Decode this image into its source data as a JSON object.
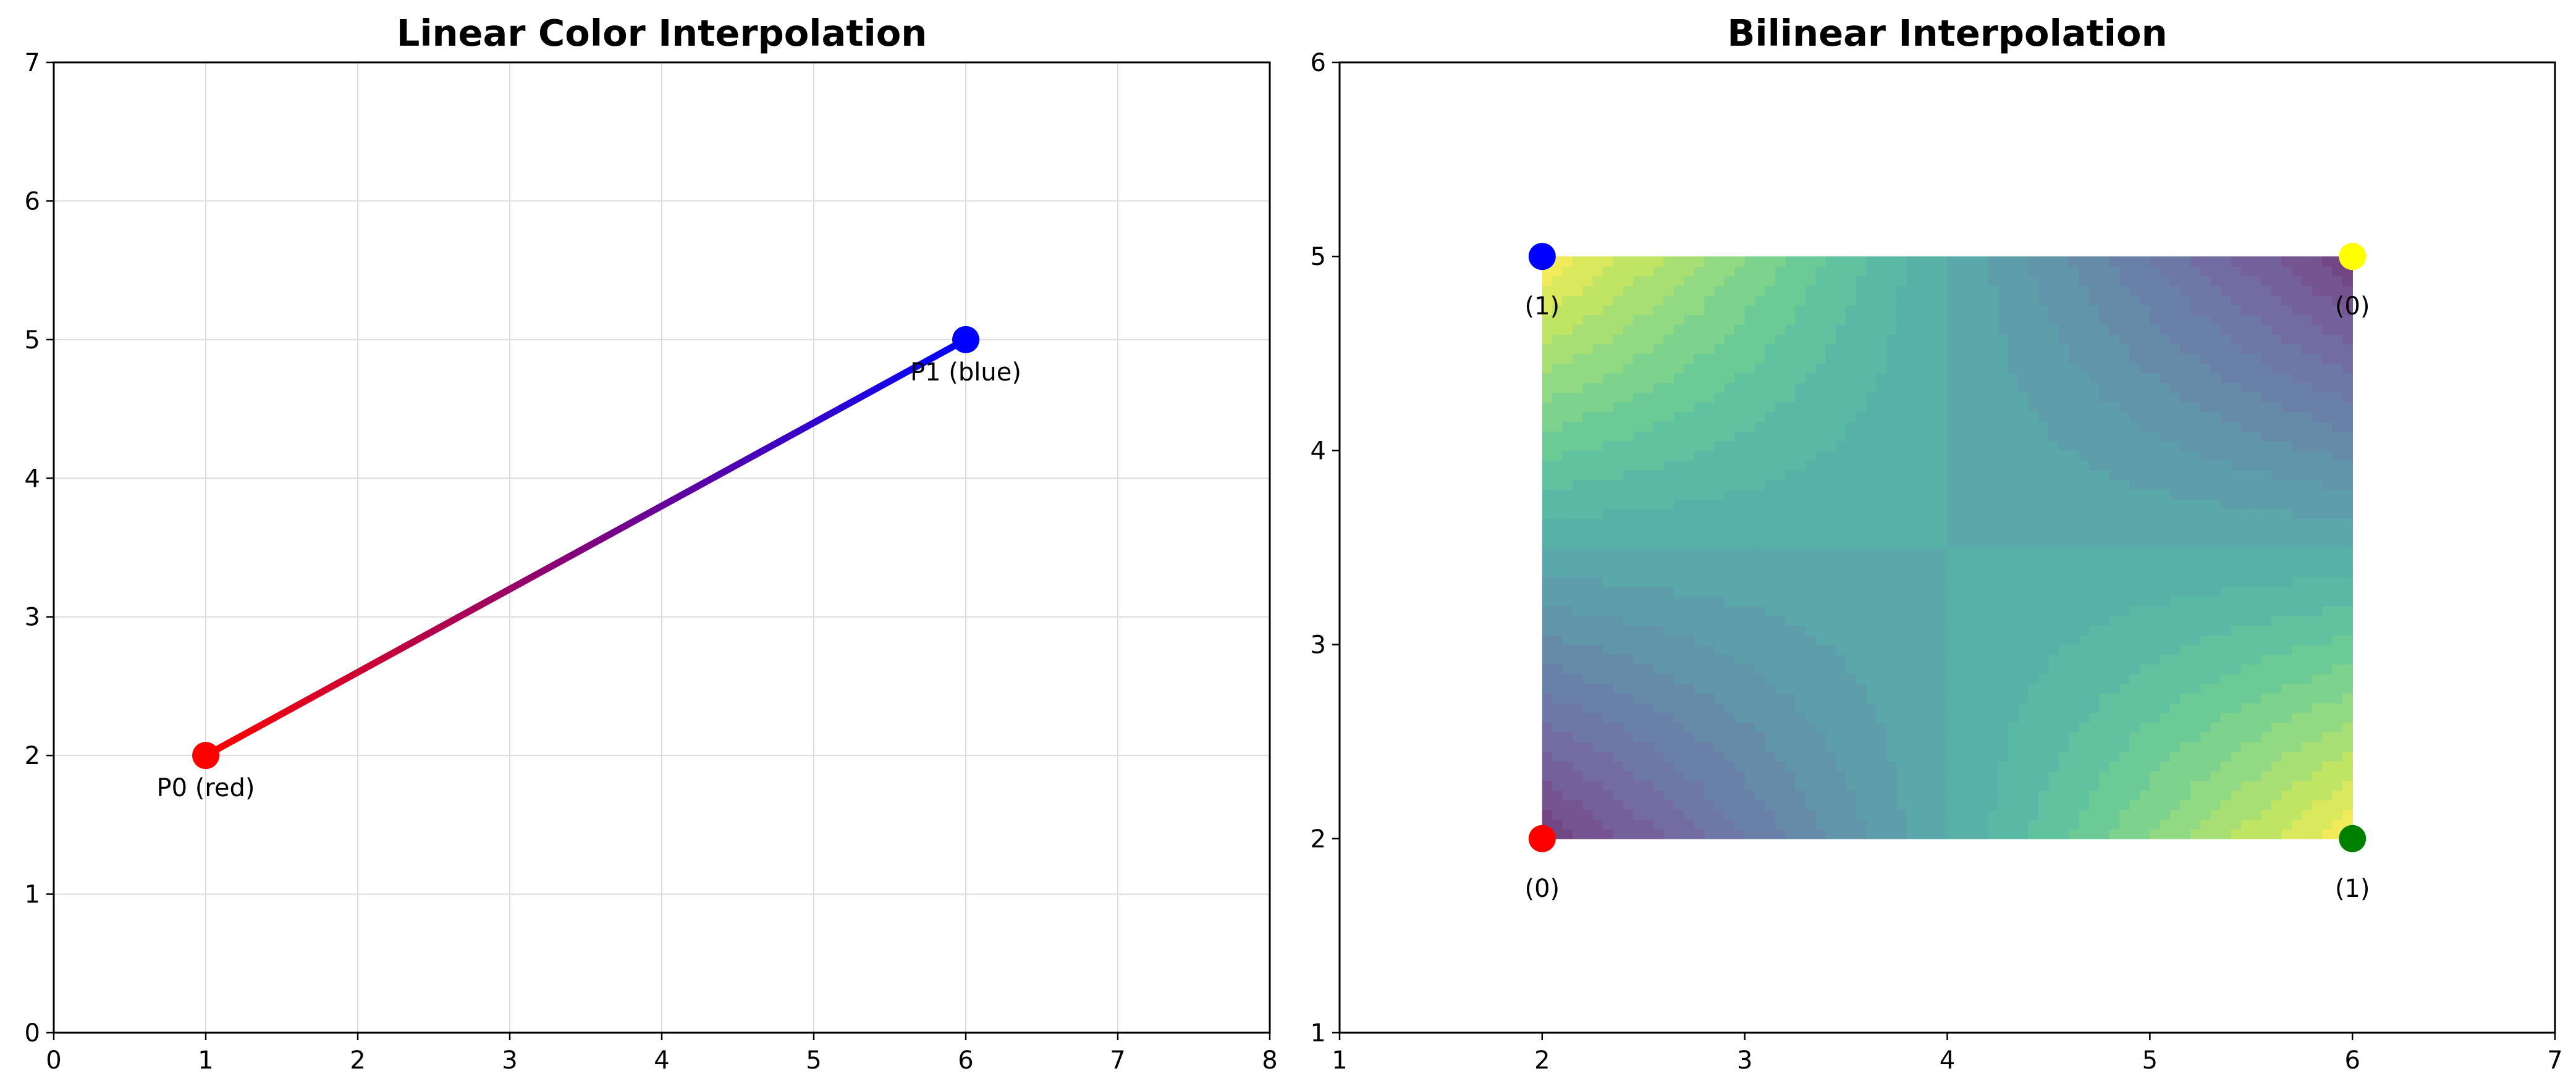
{
  "chart_data": [
    {
      "type": "line",
      "title": "Linear Color Interpolation",
      "xlabel": "",
      "ylabel": "",
      "xlim": [
        0,
        8
      ],
      "ylim": [
        0,
        7
      ],
      "xticks": [
        "0",
        "1",
        "2",
        "3",
        "4",
        "5",
        "6",
        "7",
        "8"
      ],
      "yticks": [
        "0",
        "1",
        "2",
        "3",
        "4",
        "5",
        "6",
        "7"
      ],
      "grid": true,
      "points": [
        {
          "label": "P0 (red)",
          "x": 1,
          "y": 2,
          "color": "#ff0000"
        },
        {
          "label": "P1 (blue)",
          "x": 6,
          "y": 5,
          "color": "#0000ff"
        }
      ],
      "segment_gradient": {
        "from": "#ff0000",
        "to": "#0000ff"
      }
    },
    {
      "type": "heatmap",
      "title": "Bilinear Interpolation",
      "xlabel": "",
      "ylabel": "",
      "xlim": [
        1,
        7
      ],
      "ylim": [
        1,
        6
      ],
      "xticks": [
        "1",
        "2",
        "3",
        "4",
        "5",
        "6",
        "7"
      ],
      "yticks": [
        "1",
        "2",
        "3",
        "4",
        "5",
        "6"
      ],
      "grid": false,
      "colormap": "viridis",
      "region": {
        "x": [
          2,
          6
        ],
        "y": [
          2,
          5
        ]
      },
      "corners": [
        {
          "label": "(0)",
          "x": 2,
          "y": 2,
          "value": 0,
          "color": "#ff0000"
        },
        {
          "label": "(1)",
          "x": 6,
          "y": 2,
          "value": 1,
          "color": "#008000"
        },
        {
          "label": "(1)",
          "x": 2,
          "y": 5,
          "value": 1,
          "color": "#0000ff"
        },
        {
          "label": "(0)",
          "x": 6,
          "y": 5,
          "value": 0,
          "color": "#ffff00"
        }
      ]
    }
  ]
}
